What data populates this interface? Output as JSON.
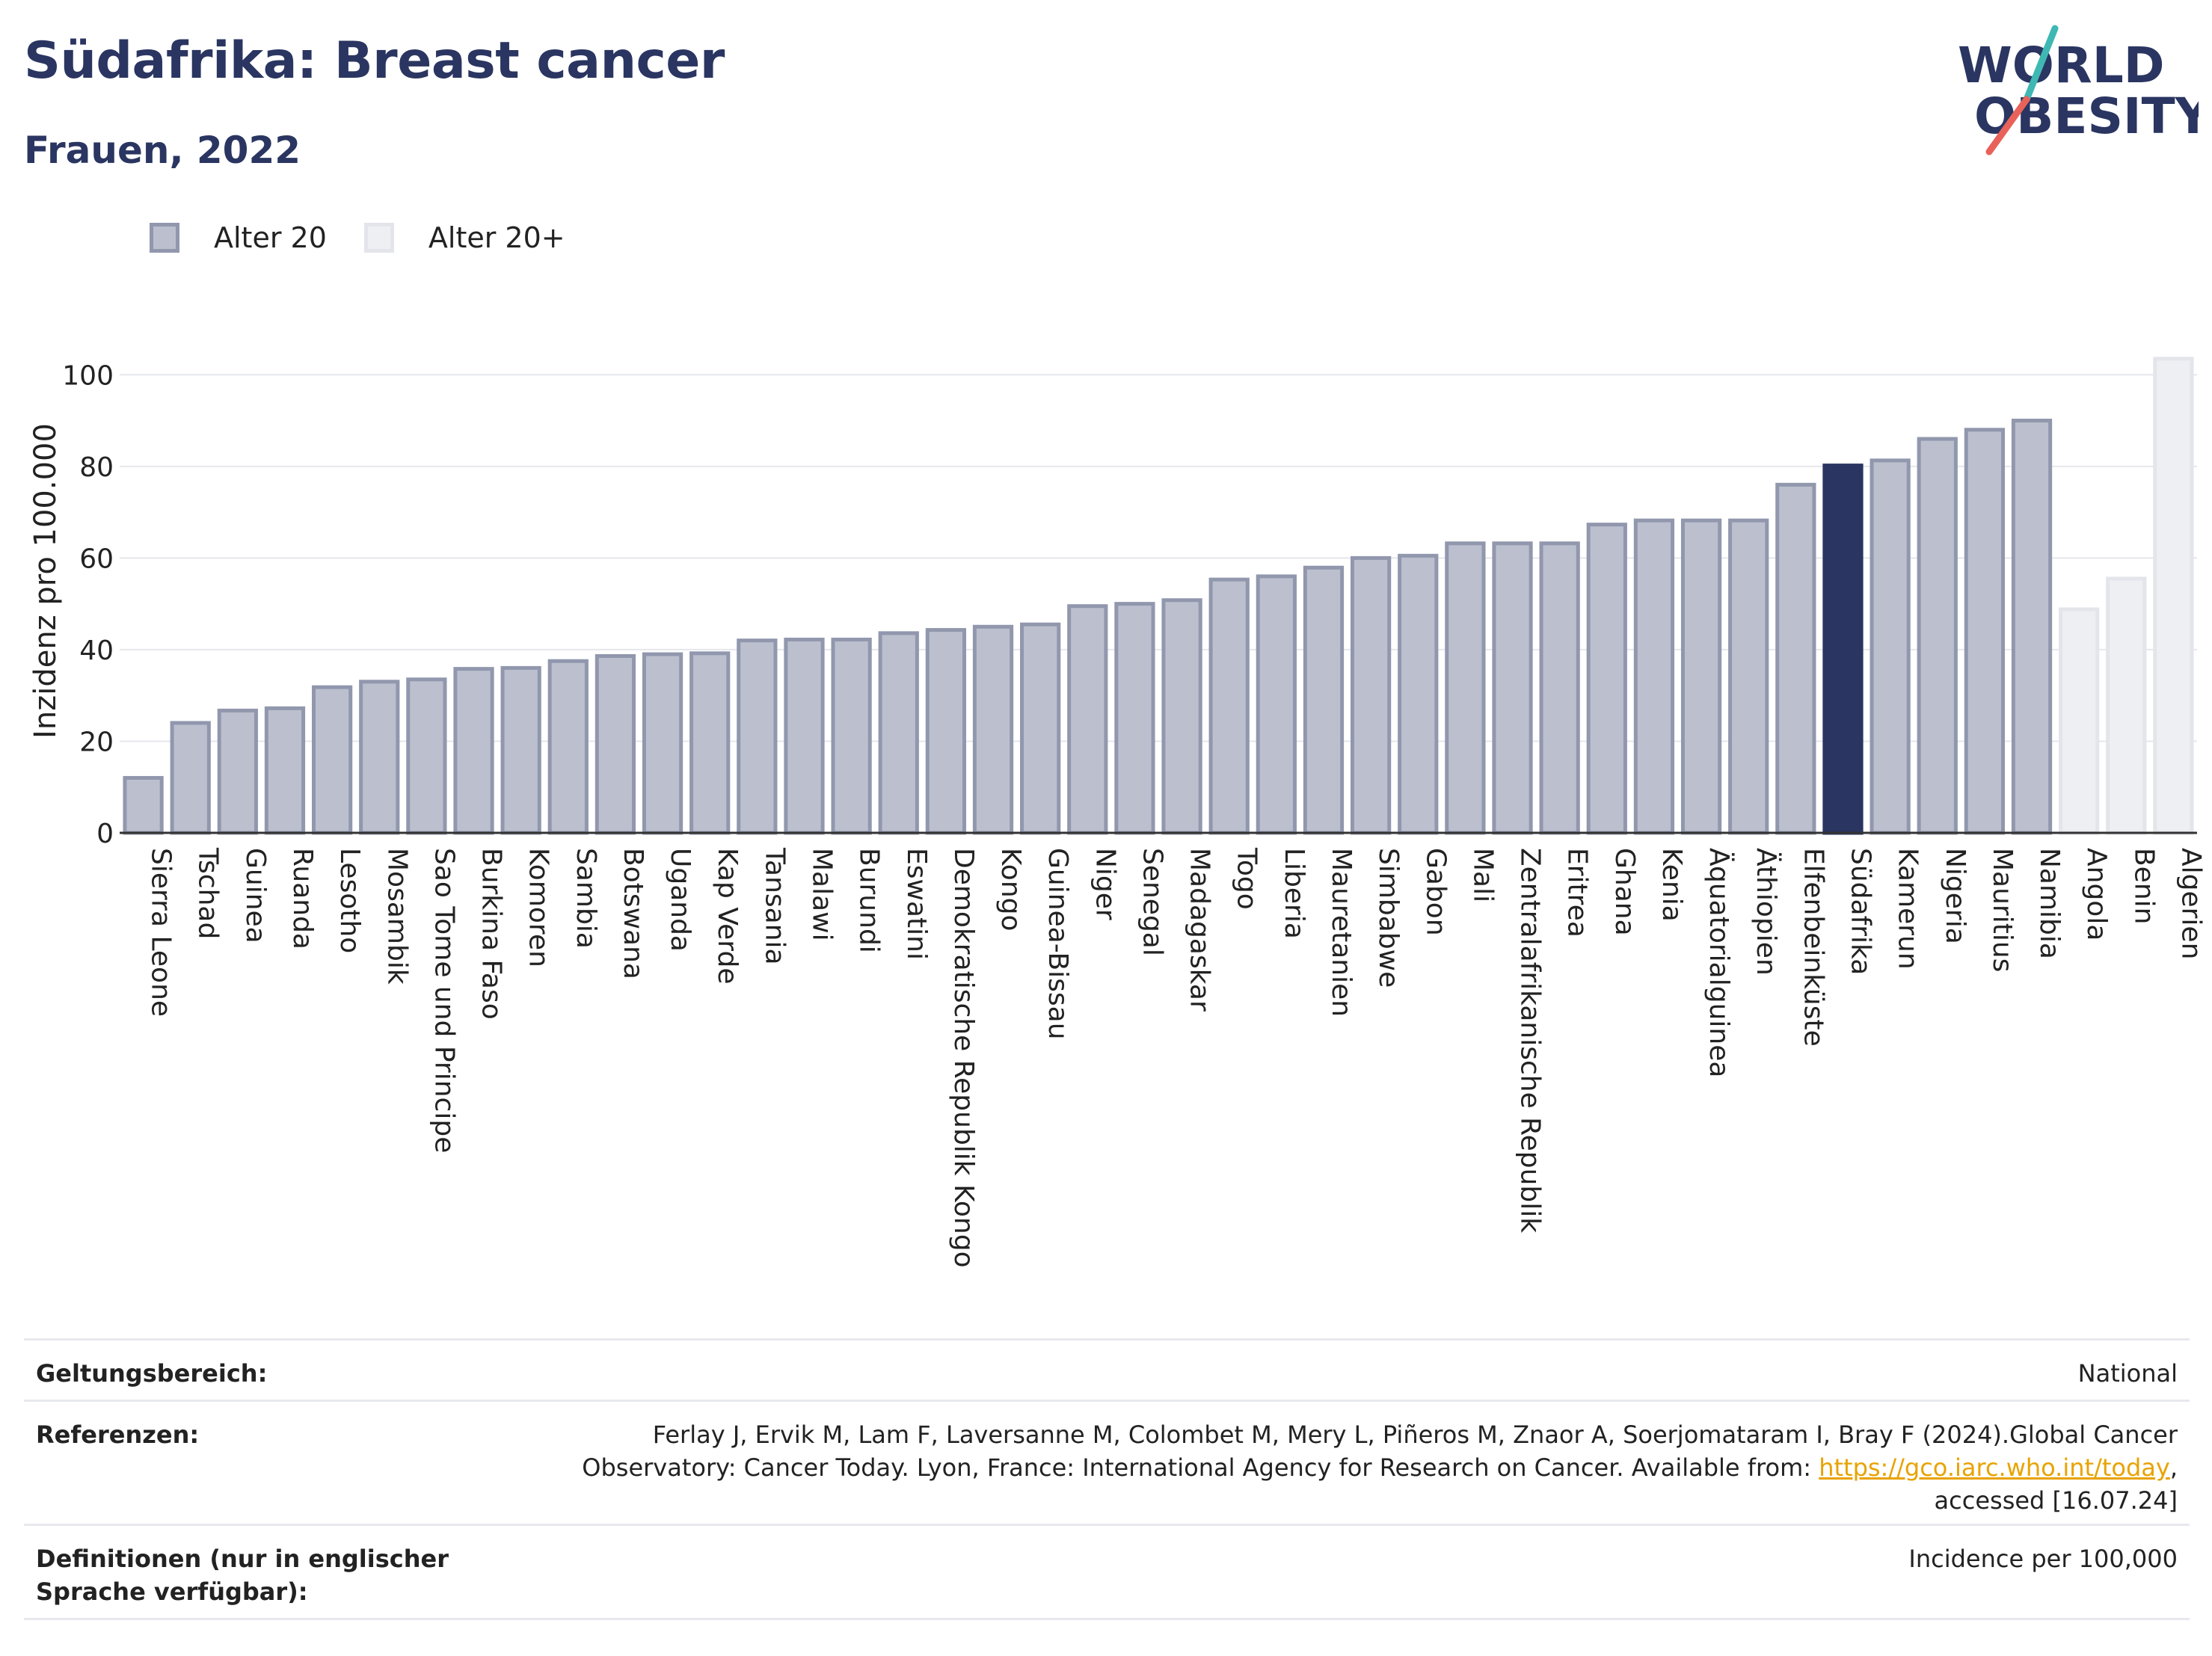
{
  "header": {
    "title": "Südafrika: Breast cancer",
    "subtitle": "Frauen, 2022"
  },
  "logo": {
    "line1": "WORLD",
    "line2": "OBESITY",
    "colors": {
      "text": "#2a3561",
      "slash_red": "#e8625a",
      "slash_teal": "#3fb8b4"
    }
  },
  "legend": [
    {
      "label": "Alter 20",
      "fill": "#bcc0ce",
      "stroke": "#9197ad"
    },
    {
      "label": "Alter 20+",
      "fill": "#eeeff3",
      "stroke": "#e3e5eb"
    }
  ],
  "colors": {
    "highlight": "#2a3561",
    "grid": "#e6e7ec",
    "axis": "#333333"
  },
  "chart_data": {
    "type": "bar",
    "ylabel": "Inzidenz pro 100.000",
    "ylim": [
      0,
      110
    ],
    "yticks": [
      0,
      20,
      40,
      60,
      80,
      100
    ],
    "grid": true,
    "legend_position": "top-left",
    "highlight": "Südafrika",
    "categories": [
      "Sierra Leone",
      "Tschad",
      "Guinea",
      "Ruanda",
      "Lesotho",
      "Mosambik",
      "Sao Tome und Principe",
      "Burkina Faso",
      "Komoren",
      "Sambia",
      "Botswana",
      "Uganda",
      "Kap Verde",
      "Tansania",
      "Malawi",
      "Burundi",
      "Eswatini",
      "Demokratische Republik Kongo",
      "Kongo",
      "Guinea-Bissau",
      "Niger",
      "Senegal",
      "Madagaskar",
      "Togo",
      "Liberia",
      "Mauretanien",
      "Simbabwe",
      "Gabon",
      "Mali",
      "Zentralafrikanische Republik",
      "Eritrea",
      "Ghana",
      "Kenia",
      "Äquatorialguinea",
      "Äthiopien",
      "Elfenbeinküste",
      "Südafrika",
      "Kamerun",
      "Nigeria",
      "Mauritius",
      "Namibia",
      "Angola",
      "Benin",
      "Algerien"
    ],
    "values": [
      12,
      24,
      26.7,
      27.2,
      31.8,
      33,
      33.5,
      35.8,
      36,
      37.5,
      38.6,
      39,
      39.2,
      42,
      42.2,
      42.2,
      43.6,
      44.3,
      45,
      45.5,
      49.5,
      50,
      50.8,
      55.3,
      56,
      57.9,
      60,
      60.5,
      63.2,
      63.2,
      63.2,
      67.3,
      68.2,
      68.2,
      68.2,
      76,
      80.2,
      81.3,
      86,
      88,
      90,
      48.8,
      55.5,
      103.5
    ],
    "series_group": [
      "Alter 20",
      "Alter 20",
      "Alter 20",
      "Alter 20",
      "Alter 20",
      "Alter 20",
      "Alter 20",
      "Alter 20",
      "Alter 20",
      "Alter 20",
      "Alter 20",
      "Alter 20",
      "Alter 20",
      "Alter 20",
      "Alter 20",
      "Alter 20",
      "Alter 20",
      "Alter 20",
      "Alter 20",
      "Alter 20",
      "Alter 20",
      "Alter 20",
      "Alter 20",
      "Alter 20",
      "Alter 20",
      "Alter 20",
      "Alter 20",
      "Alter 20",
      "Alter 20",
      "Alter 20",
      "Alter 20",
      "Alter 20",
      "Alter 20",
      "Alter 20",
      "Alter 20",
      "Alter 20",
      "Alter 20",
      "Alter 20",
      "Alter 20",
      "Alter 20",
      "Alter 20",
      "Alter 20+",
      "Alter 20+",
      "Alter 20+"
    ]
  },
  "meta": {
    "scope_label": "Geltungsbereich:",
    "scope_value": "National",
    "ref_label": "Referenzen:",
    "ref_text_1": "Ferlay J, Ervik M, Lam F, Laversanne M, Colombet M, Mery L, Piñeros M, Znaor A, Soerjomataram I, Bray F (2024).Global Cancer Observatory: Cancer Today. Lyon, France: International Agency for Research on Cancer. Available from: ",
    "ref_link": "https://gco.iarc.who.int/today",
    "ref_text_2": ", accessed [16.07.24]",
    "def_label": "Definitionen (nur in englischer Sprache verfügbar):",
    "def_value": "Incidence per 100,000"
  }
}
